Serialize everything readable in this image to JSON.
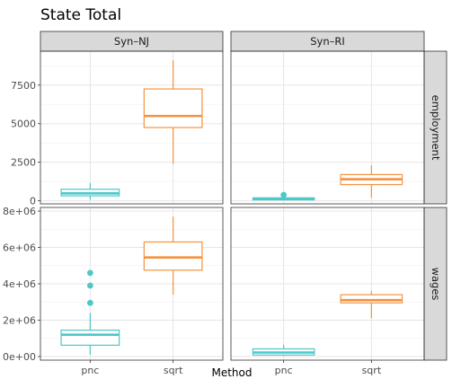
{
  "chart_data": {
    "type": "boxplot",
    "title": "State Total",
    "xlabel": "Method",
    "ylabel": "",
    "columns": [
      "Syn–NJ",
      "Syn–RI"
    ],
    "rows": [
      "employment",
      "wages"
    ],
    "categories": [
      "pnc",
      "sqrt"
    ],
    "colors": {
      "pnc": "#4ec7c9",
      "sqrt": "#f5923e"
    },
    "grid": true,
    "y_scales": {
      "employment": {
        "ylim": [
          -200,
          9700
        ],
        "ticks": [
          0,
          2500,
          5000,
          7500
        ],
        "tick_labels": [
          "0",
          "2500",
          "5000",
          "7500"
        ]
      },
      "wages": {
        "ylim": [
          -200000,
          8200000
        ],
        "ticks": [
          0,
          2000000,
          4000000,
          6000000,
          8000000
        ],
        "tick_labels": [
          "0e+00",
          "2e+06",
          "4e+06",
          "6e+06",
          "8e+06"
        ]
      }
    },
    "panels": [
      {
        "col": 0,
        "row": "employment",
        "boxes": [
          {
            "category": "pnc",
            "min": 60,
            "q1": 320,
            "median": 480,
            "q3": 750,
            "max": 1150,
            "outliers": []
          },
          {
            "category": "sqrt",
            "min": 2400,
            "q1": 4750,
            "median": 5500,
            "q3": 7250,
            "max": 9100,
            "outliers": []
          }
        ]
      },
      {
        "col": 1,
        "row": "employment",
        "boxes": [
          {
            "category": "pnc",
            "min": 20,
            "q1": 60,
            "median": 110,
            "q3": 190,
            "max": 260,
            "outliers": [
              380
            ]
          },
          {
            "category": "sqrt",
            "min": 200,
            "q1": 1050,
            "median": 1400,
            "q3": 1700,
            "max": 2300,
            "outliers": []
          }
        ]
      },
      {
        "col": 0,
        "row": "wages",
        "boxes": [
          {
            "category": "pnc",
            "min": 100000,
            "q1": 620000,
            "median": 1200000,
            "q3": 1450000,
            "max": 2400000,
            "outliers": [
              2950000,
              3900000,
              4600000
            ]
          },
          {
            "category": "sqrt",
            "min": 3400000,
            "q1": 4750000,
            "median": 5450000,
            "q3": 6300000,
            "max": 7700000,
            "outliers": []
          }
        ]
      },
      {
        "col": 1,
        "row": "wages",
        "boxes": [
          {
            "category": "pnc",
            "min": 30000,
            "q1": 80000,
            "median": 220000,
            "q3": 420000,
            "max": 650000,
            "outliers": []
          },
          {
            "category": "sqrt",
            "min": 2100000,
            "q1": 2950000,
            "median": 3100000,
            "q3": 3400000,
            "max": 3600000,
            "outliers": []
          }
        ]
      }
    ]
  }
}
